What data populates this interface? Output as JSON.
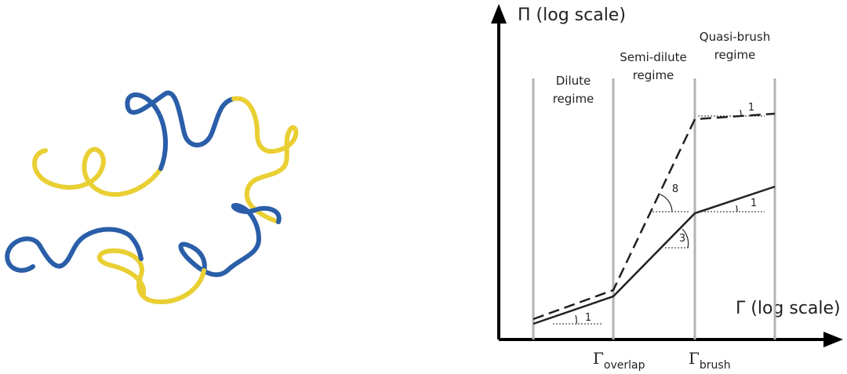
{
  "y_axis": {
    "label": "Π (log scale)"
  },
  "x_axis": {
    "label": "Γ (log scale)",
    "markers": [
      {
        "symbol": "Γ",
        "subscript": "overlap"
      },
      {
        "symbol": "Γ",
        "subscript": "brush"
      }
    ]
  },
  "regimes": [
    {
      "lines": [
        "Dilute",
        "regime"
      ]
    },
    {
      "lines": [
        "Semi-dilute",
        "regime"
      ]
    },
    {
      "lines": [
        "Quasi-brush",
        "regime"
      ]
    }
  ],
  "slopes": [
    {
      "label": "1"
    },
    {
      "label": "8"
    },
    {
      "label": "3"
    },
    {
      "label": "1"
    },
    {
      "label": "1"
    }
  ]
}
